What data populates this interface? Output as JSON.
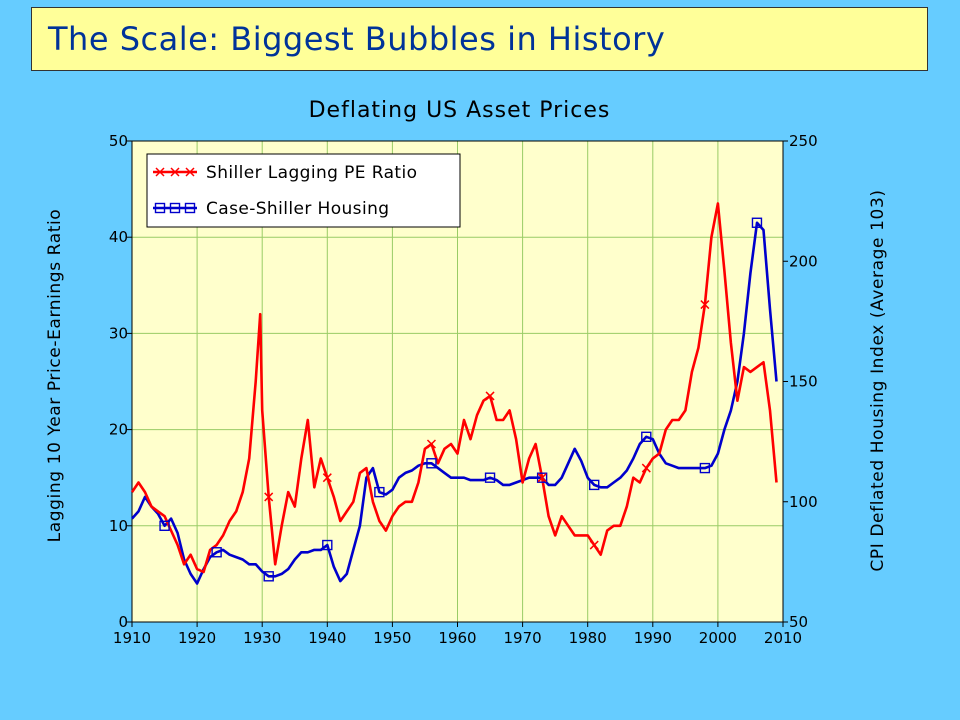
{
  "slide": {
    "title": "The Scale: Biggest Bubbles in History"
  },
  "chart_data": {
    "type": "line",
    "title": "Deflating US Asset Prices",
    "ylabel": "Lagging 10 Year Price-Earnings Ratio",
    "y2label": "CPI Deflated Housing Index (Average 103)",
    "xlim": [
      1910,
      2010
    ],
    "ylim": [
      0,
      50
    ],
    "y2lim": [
      50,
      250
    ],
    "x_ticks": [
      1910,
      1920,
      1930,
      1940,
      1950,
      1960,
      1970,
      1980,
      1990,
      2000,
      2010
    ],
    "y_ticks": [
      0,
      10,
      20,
      30,
      40,
      50
    ],
    "y2_ticks": [
      50,
      100,
      150,
      200,
      250
    ],
    "grid": true,
    "legend_position": "top-left",
    "colors": {
      "pe": "#ff0000",
      "housing": "#0000cc",
      "grid": "#99cc66",
      "background": "#ffffcc"
    },
    "series": [
      {
        "name": "Shiller Lagging PE Ratio",
        "axis": "left",
        "marker": "x",
        "x": [
          1910,
          1911,
          1912,
          1913,
          1914,
          1915,
          1916,
          1917,
          1918,
          1919,
          1920,
          1921,
          1922,
          1923,
          1924,
          1925,
          1926,
          1927,
          1928,
          1929,
          1929.7,
          1930,
          1931,
          1932,
          1933,
          1934,
          1935,
          1936,
          1937,
          1938,
          1939,
          1940,
          1941,
          1942,
          1943,
          1944,
          1945,
          1946,
          1947,
          1948,
          1949,
          1950,
          1951,
          1952,
          1953,
          1954,
          1955,
          1956,
          1957,
          1958,
          1959,
          1960,
          1961,
          1962,
          1963,
          1964,
          1965,
          1966,
          1967,
          1968,
          1969,
          1970,
          1971,
          1972,
          1973,
          1974,
          1975,
          1976,
          1977,
          1978,
          1979,
          1980,
          1981,
          1982,
          1983,
          1984,
          1985,
          1986,
          1987,
          1988,
          1989,
          1990,
          1991,
          1992,
          1993,
          1994,
          1995,
          1996,
          1997,
          1998,
          1999,
          2000,
          2001,
          2002,
          2003,
          2004,
          2005,
          2006,
          2007,
          2008,
          2009
        ],
        "values": [
          13.5,
          14.5,
          13.5,
          12.0,
          11.5,
          11.0,
          9.5,
          8.0,
          6.0,
          7.0,
          5.5,
          5.2,
          7.5,
          8.0,
          9.0,
          10.5,
          11.5,
          13.5,
          17.0,
          25.0,
          32.0,
          22.0,
          13.0,
          6.0,
          10.0,
          13.5,
          12.0,
          17.0,
          21.0,
          14.0,
          17.0,
          15.0,
          13.0,
          10.5,
          11.5,
          12.5,
          15.5,
          16.0,
          12.5,
          10.5,
          9.5,
          11.0,
          12.0,
          12.5,
          12.5,
          14.5,
          18.0,
          18.5,
          16.5,
          18.0,
          18.5,
          17.5,
          21.0,
          19.0,
          21.5,
          23.0,
          23.5,
          21.0,
          21.0,
          22.0,
          19.0,
          14.5,
          17.0,
          18.5,
          15.0,
          11.0,
          9.0,
          11.0,
          10.0,
          9.0,
          9.0,
          9.0,
          8.0,
          7.0,
          9.5,
          10.0,
          10.0,
          12.0,
          15.0,
          14.5,
          16.0,
          17.0,
          17.5,
          20.0,
          21.0,
          21.0,
          22.0,
          26.0,
          28.5,
          33.0,
          40.0,
          43.5,
          36.5,
          29.0,
          23.0,
          26.5,
          26.0,
          26.5,
          27.0,
          22.0,
          14.5
        ]
      },
      {
        "name": "Case-Shiller Housing",
        "axis": "right",
        "marker": "square",
        "x": [
          1910,
          1911,
          1912,
          1913,
          1914,
          1915,
          1916,
          1917,
          1918,
          1919,
          1920,
          1921,
          1922,
          1923,
          1924,
          1925,
          1926,
          1927,
          1928,
          1929,
          1930,
          1931,
          1932,
          1933,
          1934,
          1935,
          1936,
          1937,
          1938,
          1939,
          1940,
          1941,
          1942,
          1943,
          1944,
          1945,
          1946,
          1947,
          1948,
          1949,
          1950,
          1951,
          1952,
          1953,
          1954,
          1955,
          1956,
          1957,
          1958,
          1959,
          1960,
          1961,
          1962,
          1963,
          1964,
          1965,
          1966,
          1967,
          1968,
          1969,
          1970,
          1971,
          1972,
          1973,
          1974,
          1975,
          1976,
          1977,
          1978,
          1979,
          1980,
          1981,
          1982,
          1983,
          1984,
          1985,
          1986,
          1987,
          1988,
          1989,
          1990,
          1991,
          1992,
          1993,
          1994,
          1995,
          1996,
          1997,
          1998,
          1999,
          2000,
          2001,
          2002,
          2003,
          2004,
          2005,
          2006,
          2007,
          2008,
          2009
        ],
        "values": [
          93,
          96,
          102,
          98,
          95,
          90,
          93,
          87,
          76,
          70,
          66,
          72,
          77,
          79,
          80,
          78,
          77,
          76,
          74,
          74,
          71,
          69,
          69,
          70,
          72,
          76,
          79,
          79,
          80,
          80,
          82,
          73,
          67,
          70,
          80,
          90,
          110,
          114,
          104,
          103,
          105,
          110,
          112,
          113,
          115,
          116,
          116,
          114,
          112,
          110,
          110,
          110,
          109,
          109,
          109,
          110,
          109,
          107,
          107,
          108,
          109,
          110,
          110,
          110,
          107,
          107,
          110,
          116,
          122,
          117,
          110,
          107,
          106,
          106,
          108,
          110,
          113,
          118,
          124,
          127,
          126,
          120,
          116,
          115,
          114,
          114,
          114,
          114,
          114,
          115,
          120,
          130,
          138,
          150,
          170,
          195,
          216,
          213,
          180,
          150
        ]
      }
    ],
    "series_markers": {
      "pe_x": [
        1931,
        1940,
        1956,
        1965,
        1973,
        1981,
        1989,
        1998
      ],
      "housing_x": [
        1915,
        1923,
        1931,
        1940,
        1948,
        1956,
        1965,
        1973,
        1981,
        1989,
        1998,
        2006
      ]
    }
  }
}
